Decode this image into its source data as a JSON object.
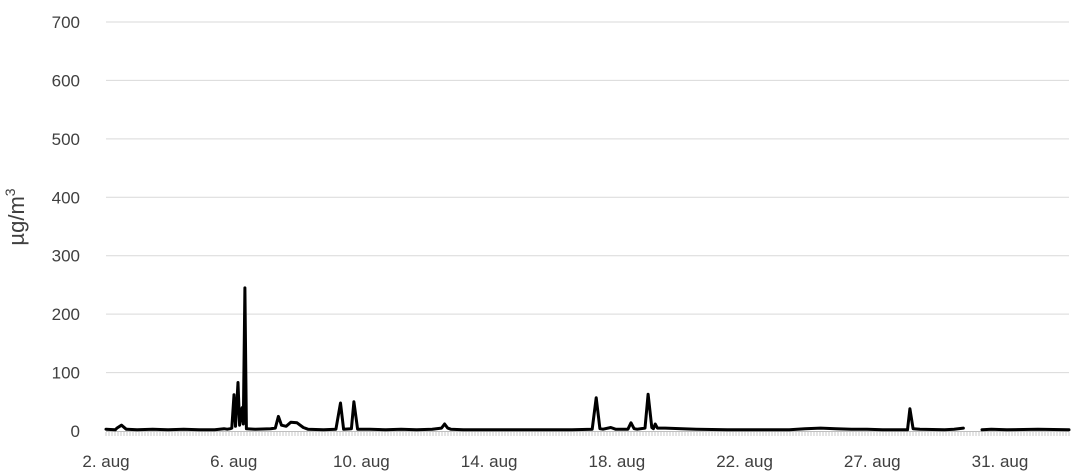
{
  "chart_data": {
    "type": "line",
    "title": "",
    "xlabel": "",
    "ylabel": "µg/m",
    "ylabel_superscript": "3",
    "ylim": [
      0,
      700
    ],
    "yticks": [
      "0",
      "100",
      "200",
      "300",
      "400",
      "500",
      "600",
      "700"
    ],
    "xticks": [
      "2. aug",
      "6. aug",
      "10. aug",
      "14. aug",
      "18. aug",
      "22. aug",
      "27. aug",
      "31. aug"
    ],
    "x_range_days": [
      2,
      33
    ],
    "grid": "horizontal",
    "legend": "none",
    "series": [
      {
        "color": "#000000",
        "points": [
          [
            2.0,
            3
          ],
          [
            2.3,
            2
          ],
          [
            2.35,
            5
          ],
          [
            2.5,
            10
          ],
          [
            2.65,
            3
          ],
          [
            3.0,
            2
          ],
          [
            3.5,
            3
          ],
          [
            4.0,
            2
          ],
          [
            4.5,
            3
          ],
          [
            5.0,
            2
          ],
          [
            5.5,
            2
          ],
          [
            5.8,
            4
          ],
          [
            5.9,
            3
          ],
          [
            6.0,
            4
          ],
          [
            6.05,
            5
          ],
          [
            6.12,
            62
          ],
          [
            6.17,
            8
          ],
          [
            6.25,
            83
          ],
          [
            6.3,
            10
          ],
          [
            6.38,
            40
          ],
          [
            6.42,
            12
          ],
          [
            6.47,
            245
          ],
          [
            6.52,
            4
          ],
          [
            6.8,
            3
          ],
          [
            7.3,
            4
          ],
          [
            7.45,
            5
          ],
          [
            7.55,
            25
          ],
          [
            7.65,
            10
          ],
          [
            7.8,
            8
          ],
          [
            7.95,
            15
          ],
          [
            8.15,
            14
          ],
          [
            8.35,
            6
          ],
          [
            8.5,
            3
          ],
          [
            9.0,
            2
          ],
          [
            9.4,
            3
          ],
          [
            9.55,
            48
          ],
          [
            9.65,
            3
          ],
          [
            9.9,
            4
          ],
          [
            9.98,
            50
          ],
          [
            10.1,
            3
          ],
          [
            10.5,
            3
          ],
          [
            11.0,
            2
          ],
          [
            11.5,
            3
          ],
          [
            12.0,
            2
          ],
          [
            12.5,
            3
          ],
          [
            12.8,
            5
          ],
          [
            12.9,
            12
          ],
          [
            13.0,
            5
          ],
          [
            13.1,
            3
          ],
          [
            13.5,
            2
          ],
          [
            14.0,
            2
          ],
          [
            15.0,
            2
          ],
          [
            16.0,
            2
          ],
          [
            17.0,
            2
          ],
          [
            17.65,
            3
          ],
          [
            17.78,
            57
          ],
          [
            17.9,
            4
          ],
          [
            18.0,
            3
          ],
          [
            18.25,
            6
          ],
          [
            18.4,
            3
          ],
          [
            18.8,
            3
          ],
          [
            18.9,
            14
          ],
          [
            19.0,
            4
          ],
          [
            19.1,
            3
          ],
          [
            19.35,
            5
          ],
          [
            19.45,
            63
          ],
          [
            19.57,
            6
          ],
          [
            19.62,
            4
          ],
          [
            19.68,
            12
          ],
          [
            19.75,
            5
          ],
          [
            20.0,
            5
          ],
          [
            21.0,
            3
          ],
          [
            22.0,
            2
          ],
          [
            23.0,
            2
          ],
          [
            24.0,
            2
          ],
          [
            24.5,
            4
          ],
          [
            25.0,
            5
          ],
          [
            25.5,
            4
          ],
          [
            26.0,
            3
          ],
          [
            26.5,
            3
          ],
          [
            27.0,
            2
          ],
          [
            27.8,
            2
          ],
          [
            27.88,
            38
          ],
          [
            27.98,
            4
          ],
          [
            28.2,
            3
          ],
          [
            29.0,
            2
          ],
          [
            29.3,
            3
          ],
          [
            29.6,
            5
          ],
          null,
          [
            30.2,
            2
          ],
          [
            30.5,
            3
          ],
          [
            31.0,
            2
          ],
          [
            32.0,
            3
          ],
          [
            33.0,
            2
          ]
        ]
      }
    ]
  }
}
